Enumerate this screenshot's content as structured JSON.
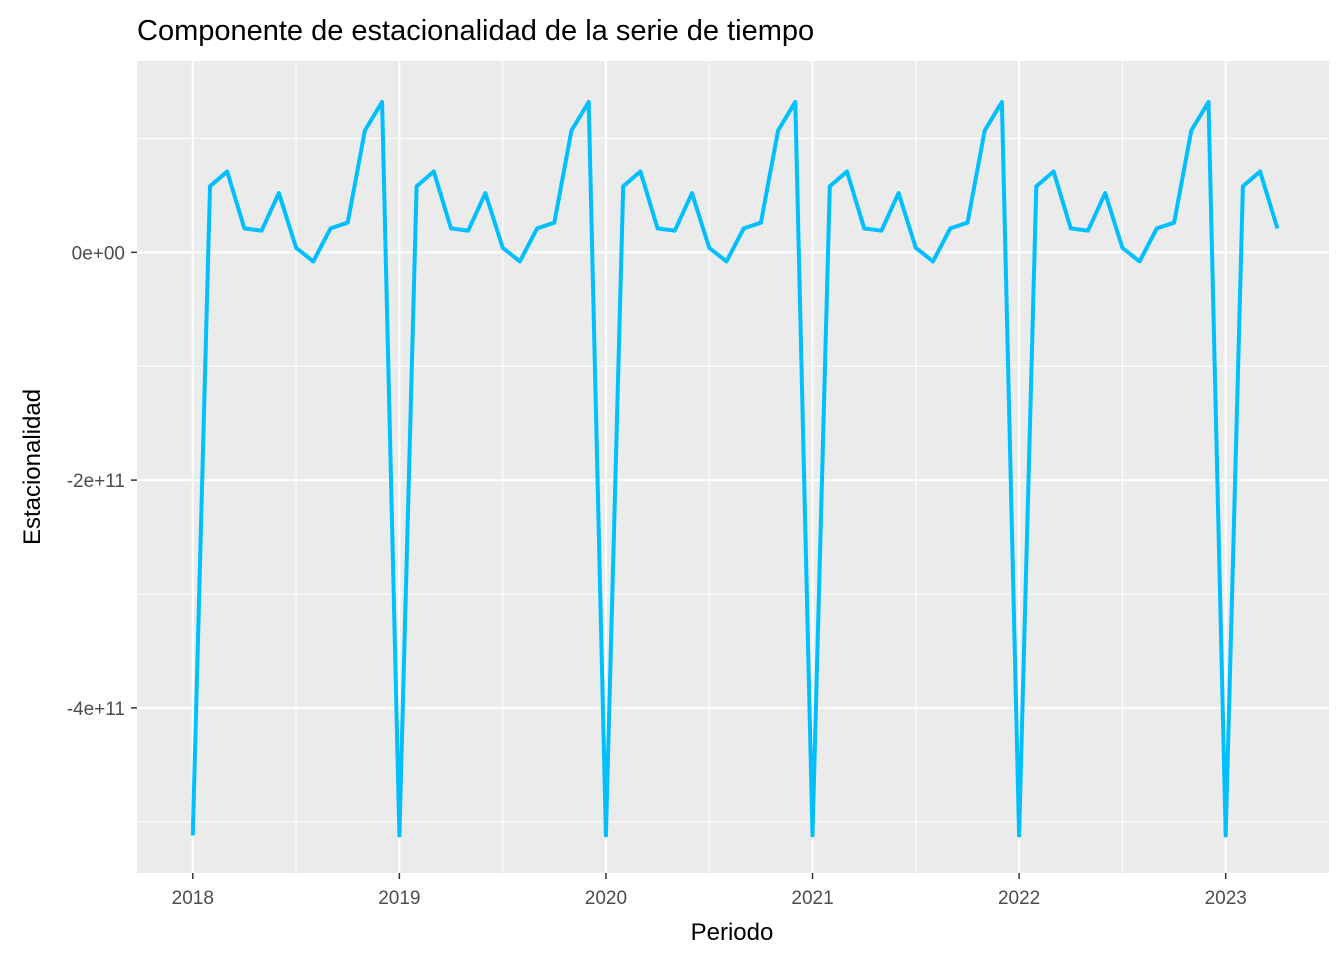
{
  "chart_data": {
    "type": "line",
    "title": "Componente de estacionalidad de la serie de tiempo",
    "xlabel": "Periodo",
    "ylabel": "Estacionalidad",
    "x_ticks": [
      "2018",
      "2019",
      "2020",
      "2021",
      "2022",
      "2023"
    ],
    "x_tick_values": [
      2018,
      2019,
      2020,
      2021,
      2022,
      2023
    ],
    "y_ticks": [
      "-4e+11",
      "-2e+11",
      "0e+00"
    ],
    "y_tick_values": [
      -400000000000,
      -200000000000,
      0
    ],
    "xlim": [
      2017.73,
      2023.5
    ],
    "ylim": [
      -545000000000,
      168000000000
    ],
    "grid": true,
    "panel_background": "#EBEBEB",
    "series": [
      {
        "color": "#00BFFF",
        "monthly_pattern": [
          -512000000000,
          58000000000,
          71000000000,
          21000000000,
          19000000000,
          52000000000,
          4000000000,
          -8000000000,
          21000000000,
          26000000000,
          107000000000,
          132000000000
        ],
        "x_start": 2018.0,
        "x_step": 0.0833333,
        "n_points": 64
      }
    ]
  }
}
